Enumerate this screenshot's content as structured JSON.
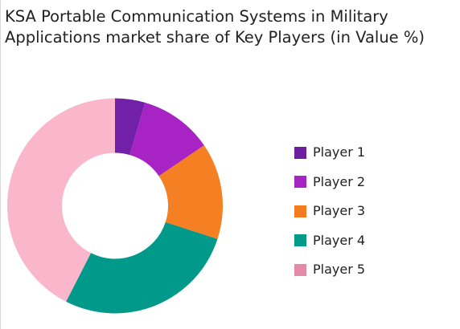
{
  "chart_data": {
    "type": "pie",
    "title": "KSA Portable Communication Systems in Military Applications market  share of Key Players (in Value %)",
    "donut": true,
    "categories": [
      "Player 1",
      "Player 2",
      "Player 3",
      "Player 4",
      "Player 5"
    ],
    "values": [
      4.5,
      11,
      14.5,
      27.5,
      42.5
    ],
    "colors": [
      "#7320A8",
      "#A723C4",
      "#F57F23",
      "#00998A",
      "#FAB7CB"
    ],
    "legend_colors": [
      "#6B1FA0",
      "#A524C2",
      "#F47B20",
      "#009A88",
      "#E58AA5"
    ],
    "legend_position": "right"
  }
}
